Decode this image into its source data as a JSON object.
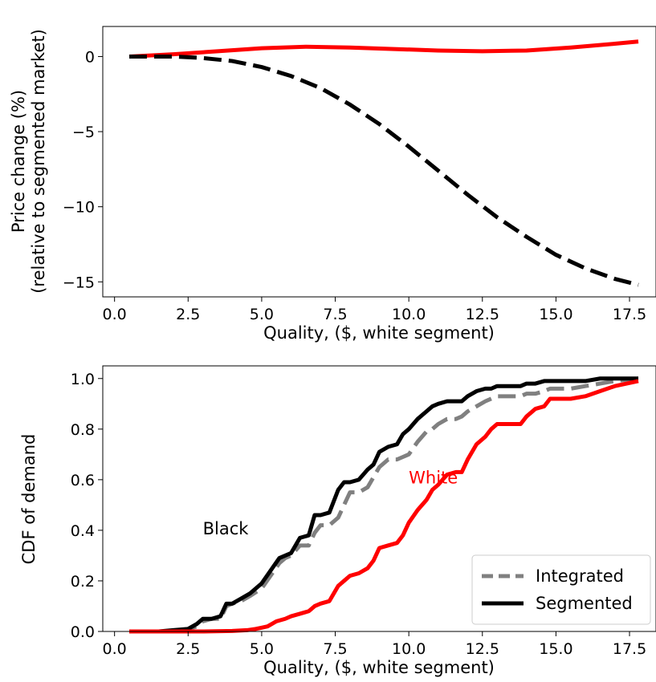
{
  "chart_data": [
    {
      "type": "line",
      "title": "",
      "xlabel": "Quality, ($, white segment)",
      "ylabel_lines": [
        "Price change (%)",
        "(relative to segmented market)"
      ],
      "xlim": [
        -0.4,
        18.4
      ],
      "ylim": [
        -16,
        2
      ],
      "xticks": [
        0.0,
        2.5,
        5.0,
        7.5,
        10.0,
        12.5,
        15.0,
        17.5
      ],
      "xtick_labels": [
        "0.0",
        "2.5",
        "5.0",
        "7.5",
        "10.0",
        "12.5",
        "15.0",
        "17.5"
      ],
      "yticks": [
        0,
        -5,
        -10,
        -15
      ],
      "ytick_labels": [
        "0",
        "−5",
        "−10",
        "−15"
      ],
      "grid": false,
      "series": [
        {
          "color": "#ff0000",
          "style": "solid",
          "x": [
            0.5,
            2,
            3.5,
            5,
            6.5,
            8,
            9.5,
            11,
            12.5,
            14,
            15.5,
            17,
            17.8
          ],
          "y": [
            0.0,
            0.15,
            0.35,
            0.55,
            0.65,
            0.6,
            0.5,
            0.4,
            0.35,
            0.4,
            0.6,
            0.85,
            1.0
          ]
        },
        {
          "color": "#000000",
          "style": "dashed",
          "x": [
            0.5,
            2,
            3,
            4,
            5,
            6,
            7,
            8,
            9,
            10,
            11,
            12,
            13,
            14,
            15,
            16,
            17,
            17.8
          ],
          "y": [
            0.0,
            0.0,
            -0.1,
            -0.3,
            -0.7,
            -1.3,
            -2.1,
            -3.2,
            -4.5,
            -6.0,
            -7.6,
            -9.2,
            -10.7,
            -12.0,
            -13.2,
            -14.1,
            -14.8,
            -15.2
          ]
        }
      ]
    },
    {
      "type": "line",
      "title": "",
      "xlabel": "Quality, ($, white segment)",
      "ylabel": "CDF of demand",
      "xlim": [
        -0.4,
        18.4
      ],
      "ylim": [
        0.0,
        1.05
      ],
      "xticks": [
        0.0,
        2.5,
        5.0,
        7.5,
        10.0,
        12.5,
        15.0,
        17.5
      ],
      "xtick_labels": [
        "0.0",
        "2.5",
        "5.0",
        "7.5",
        "10.0",
        "12.5",
        "15.0",
        "17.5"
      ],
      "yticks": [
        0.0,
        0.2,
        0.4,
        0.6,
        0.8,
        1.0
      ],
      "ytick_labels": [
        "0.0",
        "0.2",
        "0.4",
        "0.6",
        "0.8",
        "1.0"
      ],
      "grid": false,
      "legend_position": "bottom-right",
      "legend": [
        {
          "label": "Integrated",
          "color": "#808080",
          "style": "dashed"
        },
        {
          "label": "Segmented",
          "color": "#000000",
          "style": "solid"
        }
      ],
      "annotations": [
        {
          "text": "Black",
          "x": 3.0,
          "y": 0.41,
          "color": "#000000"
        },
        {
          "text": "White",
          "x": 10.0,
          "y": 0.61,
          "color": "#ff0000"
        }
      ],
      "series": [
        {
          "name": "Black, Integrated",
          "color": "#808080",
          "style": "dashed",
          "x": [
            0.5,
            1.5,
            2.0,
            2.5,
            2.8,
            3.0,
            3.3,
            3.6,
            3.8,
            4.0,
            4.3,
            4.6,
            5.0,
            5.3,
            5.6,
            5.8,
            6.0,
            6.3,
            6.6,
            6.8,
            7.0,
            7.3,
            7.6,
            7.8,
            8.0,
            8.3,
            8.6,
            8.8,
            9.0,
            9.3,
            9.6,
            9.8,
            10.0,
            10.3,
            10.6,
            10.8,
            11.0,
            11.3,
            11.6,
            11.8,
            12.0,
            12.3,
            12.6,
            12.8,
            13.0,
            13.3,
            13.6,
            13.8,
            14.0,
            14.3,
            14.6,
            14.8,
            15.0,
            15.5,
            16.0,
            16.5,
            17.0,
            17.8
          ],
          "y": [
            0.0,
            0.0,
            0.003,
            0.01,
            0.02,
            0.04,
            0.05,
            0.05,
            0.1,
            0.11,
            0.12,
            0.14,
            0.17,
            0.22,
            0.27,
            0.29,
            0.3,
            0.34,
            0.34,
            0.39,
            0.42,
            0.42,
            0.45,
            0.5,
            0.55,
            0.55,
            0.57,
            0.61,
            0.65,
            0.68,
            0.68,
            0.69,
            0.7,
            0.75,
            0.79,
            0.8,
            0.82,
            0.84,
            0.84,
            0.85,
            0.87,
            0.89,
            0.91,
            0.92,
            0.93,
            0.93,
            0.93,
            0.93,
            0.94,
            0.94,
            0.95,
            0.96,
            0.96,
            0.96,
            0.97,
            0.98,
            0.99,
            1.0
          ]
        },
        {
          "name": "Black, Segmented",
          "color": "#000000",
          "style": "solid",
          "x": [
            0.5,
            1.5,
            2.0,
            2.5,
            2.8,
            3.0,
            3.3,
            3.6,
            3.8,
            4.0,
            4.3,
            4.6,
            5.0,
            5.3,
            5.6,
            5.8,
            6.0,
            6.3,
            6.6,
            6.8,
            7.0,
            7.3,
            7.6,
            7.8,
            8.0,
            8.3,
            8.6,
            8.8,
            9.0,
            9.3,
            9.6,
            9.8,
            10.0,
            10.3,
            10.6,
            10.8,
            11.0,
            11.3,
            11.6,
            11.8,
            12.0,
            12.3,
            12.6,
            12.8,
            13.0,
            13.3,
            13.6,
            13.8,
            14.0,
            14.3,
            14.6,
            14.8,
            15.0,
            15.5,
            16.0,
            16.5,
            17.0,
            17.8
          ],
          "y": [
            0.0,
            0.0,
            0.005,
            0.01,
            0.03,
            0.05,
            0.05,
            0.06,
            0.11,
            0.11,
            0.13,
            0.15,
            0.19,
            0.24,
            0.29,
            0.3,
            0.31,
            0.37,
            0.38,
            0.46,
            0.46,
            0.47,
            0.56,
            0.59,
            0.59,
            0.6,
            0.64,
            0.66,
            0.71,
            0.73,
            0.74,
            0.78,
            0.8,
            0.84,
            0.87,
            0.89,
            0.9,
            0.91,
            0.91,
            0.91,
            0.93,
            0.95,
            0.96,
            0.96,
            0.97,
            0.97,
            0.97,
            0.97,
            0.98,
            0.98,
            0.99,
            0.99,
            0.99,
            0.99,
            0.99,
            1.0,
            1.0,
            1.0
          ]
        },
        {
          "name": "White, Segmented",
          "color": "#ff0000",
          "style": "solid",
          "x": [
            0.5,
            3.0,
            4.0,
            4.5,
            4.8,
            5.0,
            5.2,
            5.5,
            5.8,
            6.0,
            6.3,
            6.6,
            6.8,
            7.0,
            7.3,
            7.6,
            7.8,
            8.0,
            8.3,
            8.6,
            8.8,
            9.0,
            9.3,
            9.6,
            9.8,
            10.0,
            10.3,
            10.6,
            10.8,
            11.0,
            11.3,
            11.6,
            11.8,
            12.0,
            12.3,
            12.6,
            12.8,
            13.0,
            13.3,
            13.6,
            13.8,
            14.0,
            14.3,
            14.6,
            14.8,
            15.0,
            15.5,
            16.0,
            16.5,
            17.0,
            17.8
          ],
          "y": [
            0.0,
            0.0,
            0.002,
            0.005,
            0.01,
            0.015,
            0.02,
            0.04,
            0.05,
            0.06,
            0.07,
            0.08,
            0.1,
            0.11,
            0.12,
            0.18,
            0.2,
            0.22,
            0.23,
            0.25,
            0.28,
            0.33,
            0.34,
            0.35,
            0.38,
            0.43,
            0.48,
            0.52,
            0.56,
            0.58,
            0.62,
            0.63,
            0.63,
            0.68,
            0.74,
            0.77,
            0.8,
            0.82,
            0.82,
            0.82,
            0.82,
            0.85,
            0.88,
            0.89,
            0.92,
            0.92,
            0.92,
            0.93,
            0.95,
            0.97,
            0.99
          ]
        }
      ]
    }
  ]
}
